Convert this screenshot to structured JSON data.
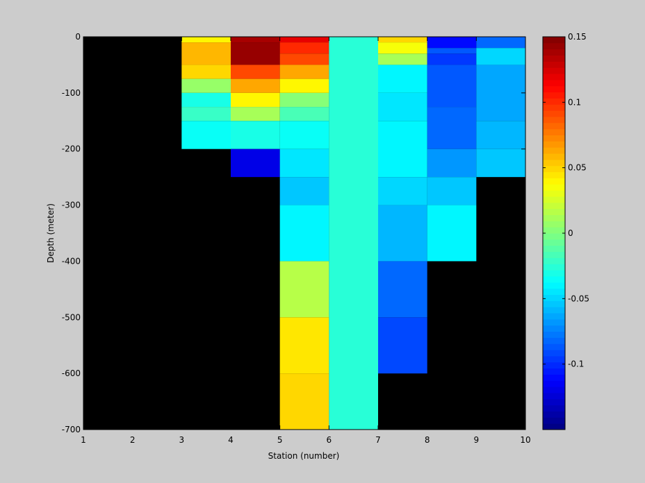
{
  "chart_data": {
    "type": "heatmap",
    "title": "",
    "xlabel": "Station (number)",
    "ylabel": "Depth (meter)",
    "xlim": [
      1,
      10
    ],
    "ylim": [
      -700,
      0
    ],
    "x_ticks": [
      "1",
      "2",
      "3",
      "4",
      "5",
      "6",
      "7",
      "8",
      "9",
      "10"
    ],
    "y_ticks": [
      "0",
      "-100",
      "-200",
      "-300",
      "-400",
      "-500",
      "-600",
      "-700"
    ],
    "y_tick_values": [
      0,
      -100,
      -200,
      -300,
      -400,
      -500,
      -600,
      -700
    ],
    "colorbar": {
      "range": [
        -0.15,
        0.15
      ],
      "ticks": [
        "0.15",
        "0.1",
        "0.05",
        "0",
        "-0.05",
        "-0.1"
      ],
      "tick_values": [
        0.15,
        0.1,
        0.05,
        0,
        -0.05,
        -0.1
      ],
      "colormap": "jet",
      "levels": 64
    },
    "nodata_color": "#000000",
    "background_color": "#cccccc",
    "grid": false,
    "cells": [
      {
        "x": [
          3,
          4
        ],
        "y": [
          -10,
          0
        ],
        "value": 0.04
      },
      {
        "x": [
          3,
          4
        ],
        "y": [
          -50,
          -10
        ],
        "value": 0.06
      },
      {
        "x": [
          3,
          4
        ],
        "y": [
          -75,
          -50
        ],
        "value": 0.05
      },
      {
        "x": [
          3,
          4
        ],
        "y": [
          -100,
          -75
        ],
        "value": 0.005
      },
      {
        "x": [
          3,
          4
        ],
        "y": [
          -125,
          -100
        ],
        "value": -0.03
      },
      {
        "x": [
          3,
          4
        ],
        "y": [
          -150,
          -125
        ],
        "value": -0.02
      },
      {
        "x": [
          3,
          4
        ],
        "y": [
          -200,
          -150
        ],
        "value": -0.035
      },
      {
        "x": [
          4,
          5
        ],
        "y": [
          -10,
          0
        ],
        "value": 0.14
      },
      {
        "x": [
          4,
          5
        ],
        "y": [
          -50,
          -10
        ],
        "value": 0.145
      },
      {
        "x": [
          4,
          5
        ],
        "y": [
          -75,
          -50
        ],
        "value": 0.09
      },
      {
        "x": [
          4,
          5
        ],
        "y": [
          -100,
          -75
        ],
        "value": 0.065
      },
      {
        "x": [
          4,
          5
        ],
        "y": [
          -125,
          -100
        ],
        "value": 0.04
      },
      {
        "x": [
          4,
          5
        ],
        "y": [
          -150,
          -125
        ],
        "value": 0.01
      },
      {
        "x": [
          4,
          5
        ],
        "y": [
          -200,
          -150
        ],
        "value": -0.03
      },
      {
        "x": [
          4,
          5
        ],
        "y": [
          -250,
          -200
        ],
        "value": -0.12
      },
      {
        "x": [
          5,
          6
        ],
        "y": [
          -10,
          0
        ],
        "value": 0.12
      },
      {
        "x": [
          5,
          6
        ],
        "y": [
          -30,
          -10
        ],
        "value": 0.1
      },
      {
        "x": [
          5,
          6
        ],
        "y": [
          -50,
          -30
        ],
        "value": 0.09
      },
      {
        "x": [
          5,
          6
        ],
        "y": [
          -75,
          -50
        ],
        "value": 0.065
      },
      {
        "x": [
          5,
          6
        ],
        "y": [
          -100,
          -75
        ],
        "value": 0.04
      },
      {
        "x": [
          5,
          6
        ],
        "y": [
          -125,
          -100
        ],
        "value": 0.0
      },
      {
        "x": [
          5,
          6
        ],
        "y": [
          -150,
          -125
        ],
        "value": -0.015
      },
      {
        "x": [
          5,
          6
        ],
        "y": [
          -200,
          -150
        ],
        "value": -0.035
      },
      {
        "x": [
          5,
          6
        ],
        "y": [
          -250,
          -200
        ],
        "value": -0.045
      },
      {
        "x": [
          5,
          6
        ],
        "y": [
          -300,
          -250
        ],
        "value": -0.055
      },
      {
        "x": [
          5,
          6
        ],
        "y": [
          -400,
          -300
        ],
        "value": -0.04
      },
      {
        "x": [
          5,
          6
        ],
        "y": [
          -500,
          -400
        ],
        "value": 0.015
      },
      {
        "x": [
          5,
          6
        ],
        "y": [
          -600,
          -500
        ],
        "value": 0.045
      },
      {
        "x": [
          5,
          6
        ],
        "y": [
          -700,
          -600
        ],
        "value": 0.05
      },
      {
        "x": [
          6,
          7
        ],
        "y": [
          -700,
          0
        ],
        "value": -0.025
      },
      {
        "x": [
          7,
          8
        ],
        "y": [
          -10,
          0
        ],
        "value": 0.05
      },
      {
        "x": [
          7,
          8
        ],
        "y": [
          -30,
          -10
        ],
        "value": 0.035
      },
      {
        "x": [
          7,
          8
        ],
        "y": [
          -50,
          -30
        ],
        "value": 0.01
      },
      {
        "x": [
          7,
          8
        ],
        "y": [
          -100,
          -50
        ],
        "value": -0.04
      },
      {
        "x": [
          7,
          8
        ],
        "y": [
          -150,
          -100
        ],
        "value": -0.045
      },
      {
        "x": [
          7,
          8
        ],
        "y": [
          -250,
          -150
        ],
        "value": -0.04
      },
      {
        "x": [
          7,
          8
        ],
        "y": [
          -300,
          -250
        ],
        "value": -0.05
      },
      {
        "x": [
          7,
          8
        ],
        "y": [
          -400,
          -300
        ],
        "value": -0.06
      },
      {
        "x": [
          7,
          8
        ],
        "y": [
          -500,
          -400
        ],
        "value": -0.08
      },
      {
        "x": [
          7,
          8
        ],
        "y": [
          -600,
          -500
        ],
        "value": -0.09
      },
      {
        "x": [
          8,
          9
        ],
        "y": [
          -20,
          0
        ],
        "value": -0.11
      },
      {
        "x": [
          8,
          9
        ],
        "y": [
          -30,
          -20
        ],
        "value": -0.085
      },
      {
        "x": [
          8,
          9
        ],
        "y": [
          -50,
          -30
        ],
        "value": -0.095
      },
      {
        "x": [
          8,
          9
        ],
        "y": [
          -125,
          -50
        ],
        "value": -0.085
      },
      {
        "x": [
          8,
          9
        ],
        "y": [
          -200,
          -125
        ],
        "value": -0.08
      },
      {
        "x": [
          8,
          9
        ],
        "y": [
          -250,
          -200
        ],
        "value": -0.07
      },
      {
        "x": [
          8,
          9
        ],
        "y": [
          -300,
          -250
        ],
        "value": -0.055
      },
      {
        "x": [
          8,
          9
        ],
        "y": [
          -400,
          -300
        ],
        "value": -0.04
      },
      {
        "x": [
          9,
          10
        ],
        "y": [
          -20,
          0
        ],
        "value": -0.08
      },
      {
        "x": [
          9,
          10
        ],
        "y": [
          -50,
          -20
        ],
        "value": -0.05
      },
      {
        "x": [
          9,
          10
        ],
        "y": [
          -150,
          -50
        ],
        "value": -0.065
      },
      {
        "x": [
          9,
          10
        ],
        "y": [
          -200,
          -150
        ],
        "value": -0.06
      },
      {
        "x": [
          9,
          10
        ],
        "y": [
          -250,
          -200
        ],
        "value": -0.055
      }
    ]
  }
}
